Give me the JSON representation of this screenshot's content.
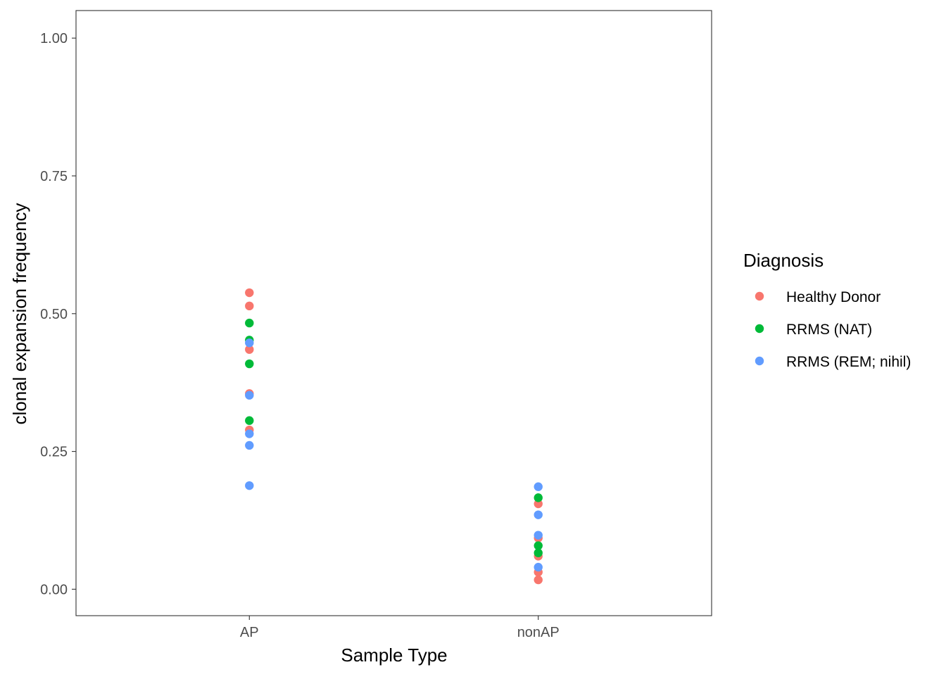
{
  "chart_data": {
    "type": "scatter",
    "title": "",
    "xlabel": "Sample Type",
    "ylabel": "clonal expansion frequency",
    "categories": [
      "AP",
      "nonAP"
    ],
    "ylim": [
      -0.048,
      1.05
    ],
    "y_ticks": [
      "0.00",
      "0.25",
      "0.50",
      "0.75",
      "1.00"
    ],
    "y_tick_values": [
      0,
      0.25,
      0.5,
      0.75,
      1.0
    ],
    "grid": false,
    "legend_position": "right",
    "legend_title": "Diagnosis",
    "series": [
      {
        "name": "Healthy Donor",
        "color": "#F8766D",
        "points": [
          {
            "x": "AP",
            "y": 0.538
          },
          {
            "x": "AP",
            "y": 0.514
          },
          {
            "x": "AP",
            "y": 0.435
          },
          {
            "x": "AP",
            "y": 0.355
          },
          {
            "x": "AP",
            "y": 0.289
          },
          {
            "x": "nonAP",
            "y": 0.155
          },
          {
            "x": "nonAP",
            "y": 0.093
          },
          {
            "x": "nonAP",
            "y": 0.06
          },
          {
            "x": "nonAP",
            "y": 0.031
          },
          {
            "x": "nonAP",
            "y": 0.017
          }
        ]
      },
      {
        "name": "RRMS (NAT)",
        "color": "#00BA38",
        "points": [
          {
            "x": "AP",
            "y": 0.483
          },
          {
            "x": "AP",
            "y": 0.452
          },
          {
            "x": "AP",
            "y": 0.409
          },
          {
            "x": "AP",
            "y": 0.306
          },
          {
            "x": "nonAP",
            "y": 0.166
          },
          {
            "x": "nonAP",
            "y": 0.079
          },
          {
            "x": "nonAP",
            "y": 0.066
          }
        ]
      },
      {
        "name": "RRMS (REM; nihil)",
        "color": "#619CFF",
        "points": [
          {
            "x": "AP",
            "y": 0.447
          },
          {
            "x": "AP",
            "y": 0.352
          },
          {
            "x": "AP",
            "y": 0.282
          },
          {
            "x": "AP",
            "y": 0.261
          },
          {
            "x": "AP",
            "y": 0.188
          },
          {
            "x": "nonAP",
            "y": 0.186
          },
          {
            "x": "nonAP",
            "y": 0.135
          },
          {
            "x": "nonAP",
            "y": 0.098
          },
          {
            "x": "nonAP",
            "y": 0.04
          }
        ]
      }
    ]
  }
}
